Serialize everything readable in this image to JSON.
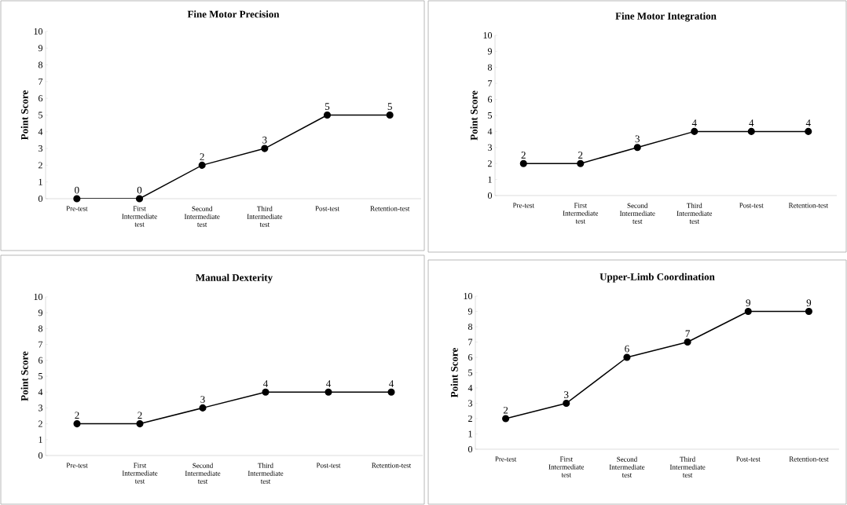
{
  "chart_data": [
    {
      "type": "line",
      "title": "Fine Motor Precision",
      "ylabel": "Point Score",
      "categories": [
        "Pre-test",
        "First Intermediate test",
        "Second Intermediate test",
        "Third Intermediate test",
        "Post-test",
        "Retention-test"
      ],
      "values": [
        0,
        0,
        2,
        3,
        5,
        5
      ],
      "color": "#000000",
      "ylim": [
        0,
        10
      ],
      "yticks": [
        0,
        1,
        2,
        3,
        4,
        5,
        6,
        7,
        8,
        9,
        10
      ],
      "data_labels": true,
      "marker": "circle",
      "line_style": "solid"
    },
    {
      "type": "line",
      "title": "Fine Motor Integration",
      "ylabel": "Point Score",
      "categories": [
        "Pre-test",
        "First Intermediate test",
        "Second Intermediate test",
        "Third Intermediate test",
        "Post-test",
        "Retention-test"
      ],
      "values": [
        2,
        2,
        3,
        4,
        4,
        4
      ],
      "color": "#000000",
      "ylim": [
        0,
        10
      ],
      "yticks": [
        0,
        1,
        2,
        3,
        4,
        5,
        6,
        7,
        8,
        9,
        10
      ],
      "data_labels": true,
      "marker": "circle",
      "line_style": "solid"
    },
    {
      "type": "line",
      "title": "Manual Dexterity",
      "ylabel": "Point Score",
      "categories": [
        "Pre-test",
        "First Intermediate test",
        "Second Intermediate test",
        "Third Intermediate test",
        "Post-test",
        "Retention-test"
      ],
      "values": [
        2,
        2,
        3,
        4,
        4,
        4
      ],
      "color": "#000000",
      "ylim": [
        0,
        10
      ],
      "yticks": [
        0,
        1,
        2,
        3,
        4,
        5,
        6,
        7,
        8,
        9,
        10
      ],
      "data_labels": true,
      "marker": "circle",
      "line_style": "solid"
    },
    {
      "type": "line",
      "title": "Upper-Limb Coordination",
      "ylabel": "Point Score",
      "categories": [
        "Pre-test",
        "First Intermediate test",
        "Second Intermediate test",
        "Third Intermediate test",
        "Post-test",
        "Retention-test"
      ],
      "values": [
        2,
        3,
        6,
        7,
        9,
        9
      ],
      "color": "#000000",
      "ylim": [
        0,
        10
      ],
      "yticks": [
        0,
        1,
        2,
        3,
        4,
        5,
        6,
        7,
        8,
        9,
        10
      ],
      "data_labels": true,
      "marker": "circle",
      "line_style": "solid"
    }
  ]
}
